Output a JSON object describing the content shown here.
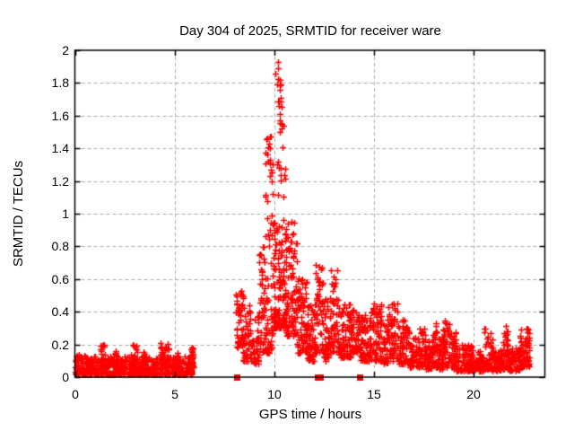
{
  "chart_data": {
    "type": "scatter",
    "title": "Day 304 of 2025, SRMTID for receiver ware",
    "xlabel": "GPS time / hours",
    "ylabel": "SRMTID / TECUs",
    "xlim": [
      0,
      23.6
    ],
    "ylim": [
      0,
      2
    ],
    "xticks": [
      {
        "label": "0",
        "value": 0
      },
      {
        "label": "5",
        "value": 5
      },
      {
        "label": "10",
        "value": 10
      },
      {
        "label": "15",
        "value": 15
      },
      {
        "label": "20",
        "value": 20
      }
    ],
    "yticks": [
      {
        "label": "0",
        "value": 0
      },
      {
        "label": "0.2",
        "value": 0.2
      },
      {
        "label": "0.4",
        "value": 0.4
      },
      {
        "label": "0.6",
        "value": 0.6
      },
      {
        "label": "0.8",
        "value": 0.8
      },
      {
        "label": "1",
        "value": 1
      },
      {
        "label": "1.2",
        "value": 1.2
      },
      {
        "label": "1.4",
        "value": 1.4
      },
      {
        "label": "1.6",
        "value": 1.6
      },
      {
        "label": "1.8",
        "value": 1.8
      },
      {
        "label": "2",
        "value": 2
      }
    ],
    "grid": {
      "on": true,
      "color": "#aaaaaa",
      "dash": [
        4,
        3
      ]
    },
    "legend": "none",
    "marker": {
      "shape": "plus",
      "color": "#ff0000",
      "size": 7,
      "stroke": 1.5
    },
    "max_point": {
      "x": 10.2,
      "y": 1.93
    },
    "data_gap_hours": [
      [
        5.95,
        8.1
      ]
    ],
    "gap_markers": {
      "shape": "filled-square",
      "color": "#ff0000",
      "size": 7,
      "y": 0,
      "x": [
        8.15,
        12.2,
        12.32,
        14.3
      ]
    },
    "seed": 304,
    "segments_format": [
      "x_start_h",
      "x_end_h",
      "n_points",
      "y_min_TECU",
      "y_max_TECU",
      "cluster_shape"
    ],
    "series": [
      {
        "name": "SRMTID",
        "color": "#ff0000",
        "segments": [
          [
            0.0,
            5.95,
            620,
            0.015,
            0.13,
            2.2
          ],
          [
            0.0,
            0.3,
            18,
            0.03,
            0.14,
            1.8
          ],
          [
            1.25,
            1.55,
            25,
            0.05,
            0.21,
            1.6
          ],
          [
            1.9,
            2.15,
            18,
            0.05,
            0.16,
            1.6
          ],
          [
            2.7,
            3.15,
            30,
            0.05,
            0.2,
            1.6
          ],
          [
            3.35,
            3.6,
            18,
            0.05,
            0.16,
            1.6
          ],
          [
            4.25,
            4.7,
            30,
            0.05,
            0.21,
            1.6
          ],
          [
            5.0,
            5.3,
            15,
            0.04,
            0.15,
            1.6
          ],
          [
            5.7,
            5.95,
            22,
            0.06,
            0.19,
            1.4
          ],
          [
            8.1,
            8.45,
            45,
            0.18,
            0.57,
            1.3
          ],
          [
            8.45,
            8.8,
            40,
            0.1,
            0.45,
            1.6
          ],
          [
            8.8,
            9.25,
            50,
            0.08,
            0.4,
            1.6
          ],
          [
            9.25,
            9.95,
            90,
            0.15,
            0.88,
            1.8
          ],
          [
            9.55,
            9.95,
            22,
            0.9,
            1.48,
            1.0
          ],
          [
            9.95,
            10.6,
            120,
            0.3,
            0.95,
            1.6
          ],
          [
            10.05,
            10.55,
            26,
            0.9,
            1.86,
            1.1
          ],
          [
            10.55,
            11.15,
            90,
            0.25,
            0.95,
            1.8
          ],
          [
            11.15,
            11.65,
            70,
            0.15,
            0.62,
            1.7
          ],
          [
            11.65,
            12.0,
            55,
            0.1,
            0.45,
            1.6
          ],
          [
            12.0,
            12.45,
            55,
            0.15,
            0.72,
            1.6
          ],
          [
            12.45,
            12.8,
            45,
            0.1,
            0.5,
            1.6
          ],
          [
            12.8,
            13.3,
            60,
            0.15,
            0.68,
            1.6
          ],
          [
            13.3,
            13.85,
            65,
            0.12,
            0.45,
            1.6
          ],
          [
            13.85,
            14.35,
            60,
            0.15,
            0.42,
            1.5
          ],
          [
            14.35,
            14.85,
            60,
            0.1,
            0.38,
            1.5
          ],
          [
            14.85,
            15.45,
            70,
            0.1,
            0.45,
            1.6
          ],
          [
            15.45,
            15.7,
            35,
            0.08,
            0.32,
            1.6
          ],
          [
            15.7,
            16.25,
            60,
            0.1,
            0.46,
            1.6
          ],
          [
            16.25,
            16.8,
            65,
            0.08,
            0.35,
            1.6
          ],
          [
            16.8,
            17.3,
            60,
            0.06,
            0.25,
            1.6
          ],
          [
            17.3,
            17.6,
            40,
            0.06,
            0.3,
            1.5
          ],
          [
            17.6,
            17.95,
            45,
            0.05,
            0.22,
            1.6
          ],
          [
            17.95,
            18.2,
            35,
            0.06,
            0.33,
            1.5
          ],
          [
            18.2,
            18.45,
            35,
            0.05,
            0.24,
            1.6
          ],
          [
            18.45,
            18.8,
            45,
            0.06,
            0.35,
            1.5
          ],
          [
            18.8,
            19.15,
            45,
            0.05,
            0.28,
            1.6
          ],
          [
            19.15,
            20.0,
            100,
            0.04,
            0.2,
            1.8
          ],
          [
            20.0,
            20.55,
            70,
            0.04,
            0.16,
            1.8
          ],
          [
            20.55,
            20.95,
            50,
            0.05,
            0.3,
            1.7
          ],
          [
            20.95,
            21.45,
            60,
            0.04,
            0.18,
            1.8
          ],
          [
            21.45,
            21.75,
            40,
            0.05,
            0.33,
            1.6
          ],
          [
            21.75,
            22.3,
            65,
            0.04,
            0.18,
            1.8
          ],
          [
            22.3,
            22.85,
            75,
            0.06,
            0.3,
            1.5
          ]
        ],
        "peak_points": [
          [
            10.18,
            1.93
          ],
          [
            10.22,
            1.89
          ],
          [
            10.3,
            1.82
          ],
          [
            10.35,
            1.79
          ],
          [
            10.27,
            1.76
          ],
          [
            10.33,
            1.71
          ],
          [
            10.24,
            1.66
          ],
          [
            10.3,
            1.61
          ],
          [
            10.28,
            1.57
          ],
          [
            10.38,
            1.55
          ],
          [
            9.78,
            1.47
          ],
          [
            9.75,
            1.43
          ],
          [
            9.8,
            1.4
          ],
          [
            9.68,
            1.36
          ],
          [
            9.7,
            1.32
          ]
        ]
      }
    ],
    "colors": {
      "background": "#ffffff",
      "border": "#000000",
      "text": "#000000",
      "series": "#ff0000",
      "grid": "#aaaaaa"
    }
  }
}
